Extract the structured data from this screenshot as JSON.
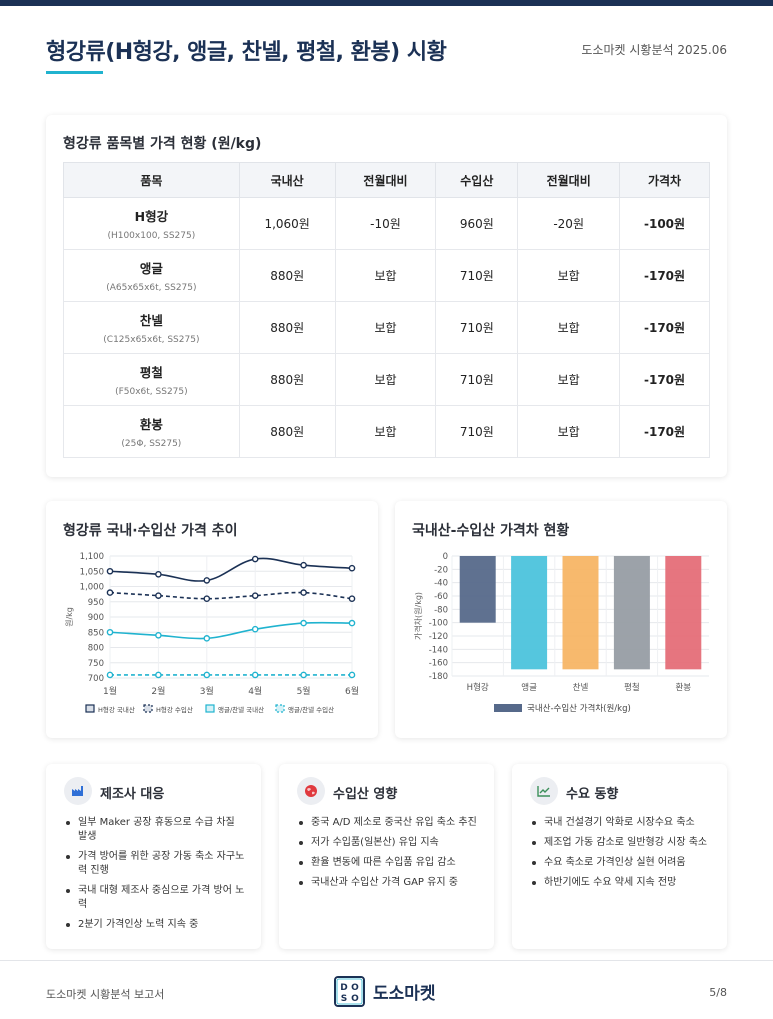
{
  "header": {
    "title": "형강류(H형강, 앵글, 찬넬, 평철, 환봉) 시황",
    "meta": "도소마켓 시황분석 2025.06"
  },
  "price_table": {
    "title": "형강류 품목별 가격 현황 (원/kg)",
    "columns": [
      "품목",
      "국내산",
      "전월대비",
      "수입산",
      "전월대비",
      "가격차"
    ],
    "rows": [
      {
        "name": "H형강",
        "spec": "(H100x100, SS275)",
        "domestic": "1,060원",
        "domestic_change": "-10원",
        "import": "960원",
        "import_change": "-20원",
        "diff": "-100원"
      },
      {
        "name": "앵글",
        "spec": "(A65x65x6t, SS275)",
        "domestic": "880원",
        "domestic_change": "보합",
        "import": "710원",
        "import_change": "보합",
        "diff": "-170원"
      },
      {
        "name": "찬넬",
        "spec": "(C125x65x6t, SS275)",
        "domestic": "880원",
        "domestic_change": "보합",
        "import": "710원",
        "import_change": "보합",
        "diff": "-170원"
      },
      {
        "name": "평철",
        "spec": "(F50x6t, SS275)",
        "domestic": "880원",
        "domestic_change": "보합",
        "import": "710원",
        "import_change": "보합",
        "diff": "-170원"
      },
      {
        "name": "환봉",
        "spec": "(25Φ, SS275)",
        "domestic": "880원",
        "domestic_change": "보합",
        "import": "710원",
        "import_change": "보합",
        "diff": "-170원"
      }
    ]
  },
  "colors": {
    "navy": "#1b3155",
    "cyan": "#20b3cf",
    "negative": "#e0393e",
    "diff": "#7b32d8",
    "bar_h": "#56698a",
    "bar_angle": "#4cc3dc",
    "bar_channel": "#f7b565",
    "bar_flat": "#979da4",
    "bar_round": "#e56e78"
  },
  "chart_data": [
    {
      "type": "line",
      "title": "형강류 국내·수입산 가격 추이",
      "ylabel": "원/kg",
      "xlabel": "",
      "x": [
        "1월",
        "2월",
        "3월",
        "4월",
        "5월",
        "6월"
      ],
      "ylim": [
        700,
        1100
      ],
      "yticks": [
        "700",
        "750",
        "800",
        "850",
        "900",
        "950",
        "1,000",
        "1,050",
        "1,100"
      ],
      "grid": true,
      "legend": "bottom",
      "series": [
        {
          "name": "H형강 국내산",
          "values": [
            1050,
            1040,
            1020,
            1090,
            1070,
            1060
          ],
          "color": "#1b3155",
          "style": "solid"
        },
        {
          "name": "H형강 수입산",
          "values": [
            980,
            970,
            960,
            970,
            980,
            960
          ],
          "color": "#1b3155",
          "style": "dashed"
        },
        {
          "name": "앵글/찬넬 국내산",
          "values": [
            850,
            840,
            830,
            860,
            880,
            880
          ],
          "color": "#20b3cf",
          "style": "solid"
        },
        {
          "name": "앵글/찬넬 수입산",
          "values": [
            710,
            710,
            710,
            710,
            710,
            710
          ],
          "color": "#20b3cf",
          "style": "dashed"
        }
      ]
    },
    {
      "type": "bar",
      "title": "국내산-수입산 가격차 현황",
      "ylabel": "가격차(원/kg)",
      "xlabel": "",
      "categories": [
        "H형강",
        "앵글",
        "찬넬",
        "평철",
        "환봉"
      ],
      "ylim": [
        -180,
        0
      ],
      "yticks": [
        "0",
        "-20",
        "-40",
        "-60",
        "-80",
        "-100",
        "-120",
        "-140",
        "-160",
        "-180"
      ],
      "grid": true,
      "legend": "bottom",
      "series": [
        {
          "name": "국내산-수입산 가격차(원/kg)",
          "values": [
            -100,
            -170,
            -170,
            -170,
            -170
          ]
        }
      ]
    }
  ],
  "info_cards": [
    {
      "title": "제조사 대응",
      "icon": "factory-icon",
      "items": [
        "일부 Maker 공장 휴동으로 수급 차질 발생",
        "가격 방어를 위한 공장 가동 축소 자구노력 진행",
        "국내 대형 제조사 중심으로 가격 방어 노력",
        "2분기 가격인상 노력 지속 중"
      ]
    },
    {
      "title": "수입산 영향",
      "icon": "globe-icon",
      "items": [
        "중국 A/D 제소로 중국산 유입 축소 추진",
        "저가 수입품(일본산) 유입 지속",
        "환율 변동에 따른 수입품 유입 감소",
        "국내산과 수입산 가격 GAP 유지 중"
      ]
    },
    {
      "title": "수요 동향",
      "icon": "trend-chart-icon",
      "items": [
        "국내 건설경기 악화로 시장수요 축소",
        "제조업 가동 감소로 일반형강 시장 축소",
        "수요 축소로 가격인상 실현 어려움",
        "하반기에도 수요 약세 지속 전망"
      ]
    }
  ],
  "footer": {
    "left": "도소마켓 시황분석 보고서",
    "brand": "도소마켓",
    "logo_letters": [
      "D",
      "O",
      "S",
      "O"
    ],
    "page": "5/8"
  }
}
